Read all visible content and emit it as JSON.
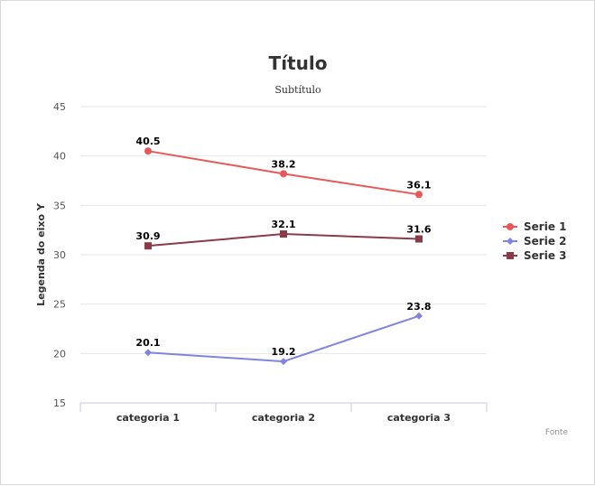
{
  "chart_data": {
    "type": "line",
    "title": "Título",
    "subtitle": "Subtítulo",
    "ylabel": "Legenda do eixo Y",
    "xlabel": "",
    "categories": [
      "categoria 1",
      "categoria 2",
      "categoria 3"
    ],
    "ylim": [
      15,
      45
    ],
    "yticks": [
      15,
      20,
      25,
      30,
      35,
      40,
      45
    ],
    "grid": true,
    "legend_position": "right",
    "credit": "Fonte",
    "series": [
      {
        "name": "Serie 1",
        "values": [
          40.5,
          38.2,
          36.1
        ],
        "color": "#e8585a",
        "marker": "circle"
      },
      {
        "name": "Serie 2",
        "values": [
          20.1,
          19.2,
          23.8
        ],
        "color": "#7f84e0",
        "marker": "diamond"
      },
      {
        "name": "Serie 3",
        "values": [
          30.9,
          32.1,
          31.6
        ],
        "color": "#8b3a4a",
        "marker": "square"
      }
    ]
  }
}
